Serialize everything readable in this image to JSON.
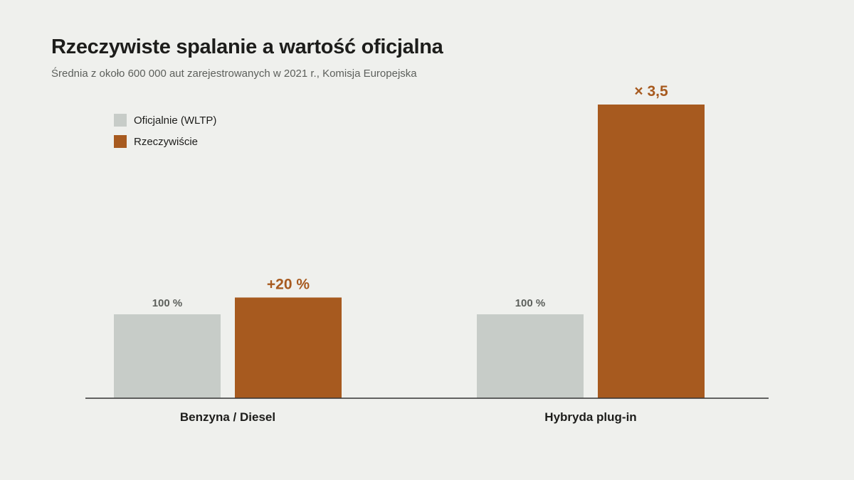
{
  "title": "Rzeczywiste spalanie a wartość oficjalna",
  "subtitle": "Średnia z około 600 000 aut zarejestrowanych w 2021 r., Komisja Europejska",
  "colors": {
    "official": "#c7ccc8",
    "real": "#a75a1f",
    "official_label": "#5d605c",
    "axis": "#333333"
  },
  "chart_data": {
    "type": "bar",
    "categories": [
      "Benzyna / Diesel",
      "Hybryda plug-in"
    ],
    "ylim": [
      0,
      360
    ],
    "legend_position": "top-left",
    "series": [
      {
        "name": "Oficjalnie (WLTP)",
        "values": [
          100,
          100
        ],
        "labels": [
          "100 %",
          "100 %"
        ]
      },
      {
        "name": "Rzeczywiście",
        "values": [
          120,
          350
        ],
        "labels": [
          "+20 %",
          "× 3,5"
        ]
      }
    ]
  }
}
